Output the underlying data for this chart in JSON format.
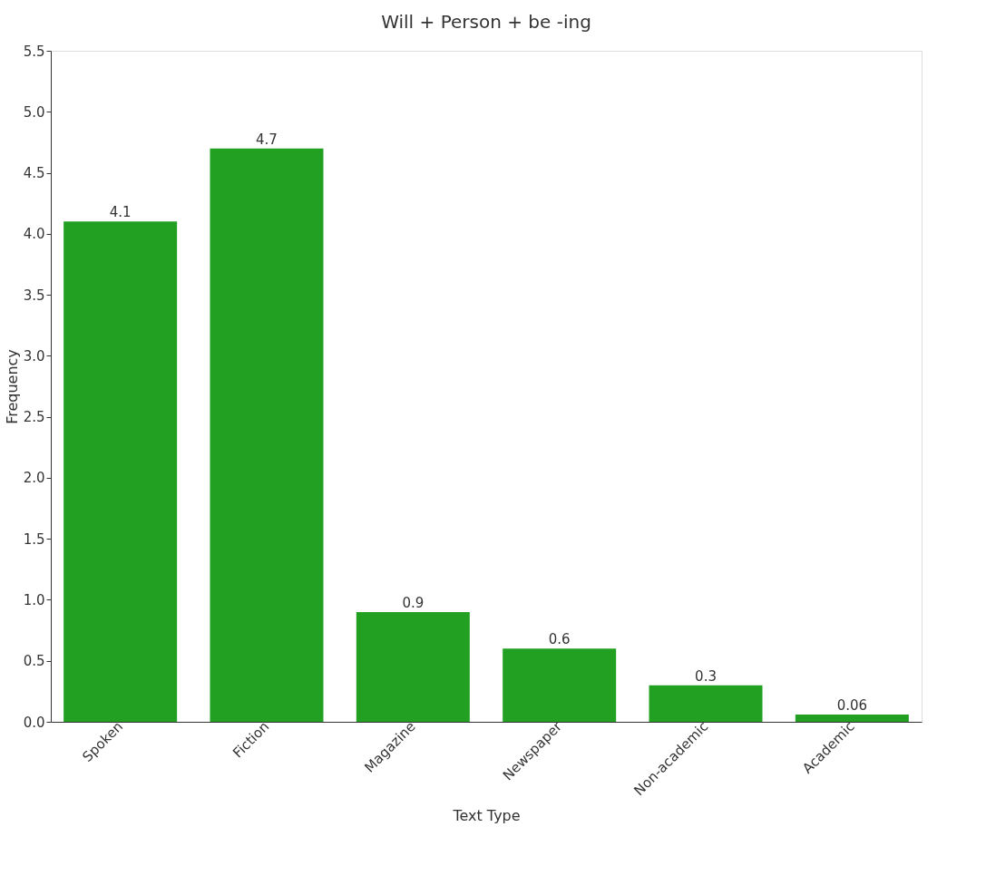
{
  "chart_data": {
    "type": "bar",
    "title": "Will + Person + be -ing",
    "xlabel": "Text Type",
    "ylabel": "Frequency",
    "categories": [
      "Spoken",
      "Fiction",
      "Magazine",
      "Newspaper",
      "Non-academic",
      "Academic"
    ],
    "values": [
      4.1,
      4.7,
      0.9,
      0.6,
      0.3,
      0.06
    ],
    "color": "#22a022",
    "ylim": [
      0,
      5.5
    ],
    "yticks": [
      {
        "value": 0,
        "label": "0.0"
      },
      {
        "value": 0.5,
        "label": "0.5"
      },
      {
        "value": 1,
        "label": "1.0"
      },
      {
        "value": 1.5,
        "label": "1.5"
      },
      {
        "value": 2,
        "label": "2.0"
      },
      {
        "value": 2.5,
        "label": "2.5"
      },
      {
        "value": 3,
        "label": "3.0"
      },
      {
        "value": 3.5,
        "label": "3.5"
      },
      {
        "value": 4,
        "label": "4.0"
      },
      {
        "value": 4.5,
        "label": "4.5"
      },
      {
        "value": 5,
        "label": "5.0"
      },
      {
        "value": 5.5,
        "label": "5.5"
      }
    ],
    "grid": false,
    "data_labels": true
  }
}
